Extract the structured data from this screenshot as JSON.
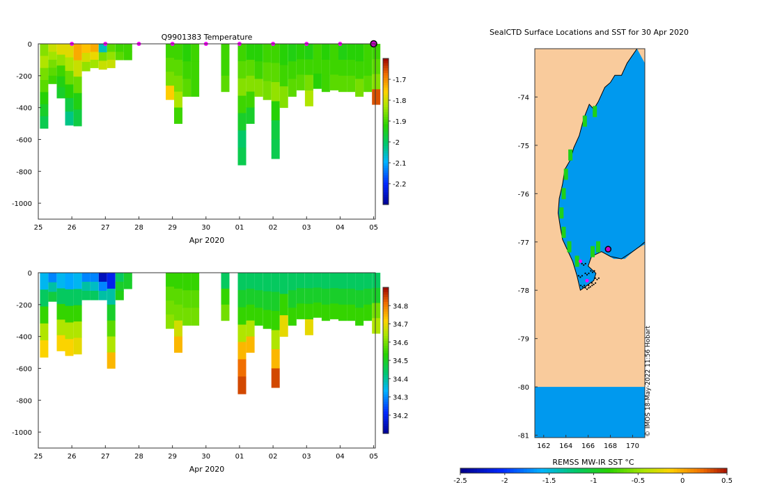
{
  "chart_data": [
    {
      "id": "temperature",
      "type": "heatmap",
      "title": "Q9901383  Temperature",
      "xlabel": "Apr 2020",
      "x_ticks": [
        "25",
        "26",
        "27",
        "28",
        "29",
        "30",
        "01",
        "02",
        "03",
        "04",
        "05"
      ],
      "y_ticks": [
        "0",
        "-200",
        "-400",
        "-600",
        "-800",
        "-1000"
      ],
      "y_tick_values": [
        0,
        -200,
        -400,
        -600,
        -800,
        -1000
      ],
      "ylim": [
        -1100,
        0
      ],
      "xlim_days": [
        0,
        10.05
      ],
      "colorbar": {
        "min": -2.3,
        "max": -1.6,
        "ticks": [
          "-1.7",
          "-1.8",
          "-1.9",
          "-2",
          "-2.1",
          "-2.2"
        ],
        "tick_values": [
          -1.7,
          -1.8,
          -1.9,
          -2.0,
          -2.1,
          -2.2
        ]
      },
      "profile_markers_days": [
        1,
        2,
        3,
        4,
        5,
        6,
        7,
        8,
        9
      ],
      "latest_marker_day": 10,
      "profiles": [
        {
          "x": 0.05,
          "depth": 530,
          "vals": [
            -1.85,
            -1.82,
            -1.86,
            -1.88,
            -1.92,
            -1.95,
            -1.98
          ]
        },
        {
          "x": 0.3,
          "depth": 250,
          "vals": [
            -1.8,
            -1.83,
            -1.86,
            -1.88,
            -1.9
          ]
        },
        {
          "x": 0.55,
          "depth": 340,
          "vals": [
            -1.78,
            -1.84,
            -1.9,
            -1.93,
            -1.95
          ]
        },
        {
          "x": 0.8,
          "depth": 510,
          "vals": [
            -1.78,
            -1.82,
            -1.87,
            -1.92,
            -1.97,
            -2.02
          ]
        },
        {
          "x": 1.05,
          "depth": 515,
          "vals": [
            -1.72,
            -1.8,
            -1.87,
            -1.93,
            -1.97
          ]
        },
        {
          "x": 1.3,
          "depth": 170,
          "vals": [
            -1.74,
            -1.79,
            -1.84
          ]
        },
        {
          "x": 1.55,
          "depth": 150,
          "vals": [
            -1.72,
            -1.77,
            -1.83
          ]
        },
        {
          "x": 1.8,
          "depth": 160,
          "vals": [
            -2.05,
            -1.86,
            -1.8
          ]
        },
        {
          "x": 2.05,
          "depth": 150,
          "vals": [
            -1.88,
            -1.84,
            -1.8
          ]
        },
        {
          "x": 2.3,
          "depth": 100,
          "vals": [
            -1.9,
            -1.88
          ]
        },
        {
          "x": 2.55,
          "depth": 100,
          "vals": [
            -1.9,
            -1.9
          ]
        },
        {
          "x": 3.8,
          "depth": 350,
          "vals": [
            -1.9,
            -1.88,
            -1.86,
            -1.75
          ]
        },
        {
          "x": 4.05,
          "depth": 500,
          "vals": [
            -1.9,
            -1.88,
            -1.86,
            -1.82,
            -1.9
          ]
        },
        {
          "x": 4.3,
          "depth": 330,
          "vals": [
            -1.92,
            -1.9,
            -1.88
          ]
        },
        {
          "x": 4.55,
          "depth": 330,
          "vals": [
            -1.9,
            -1.9,
            -1.9
          ]
        },
        {
          "x": 5.45,
          "depth": 300,
          "vals": [
            -1.9,
            -1.9,
            -1.88
          ]
        },
        {
          "x": 5.95,
          "depth": 760,
          "vals": [
            -1.9,
            -1.88,
            -1.85,
            -1.9,
            -1.95,
            -2.0,
            -1.98
          ]
        },
        {
          "x": 6.2,
          "depth": 500,
          "vals": [
            -1.92,
            -1.88,
            -1.85,
            -1.9,
            -1.95
          ]
        },
        {
          "x": 6.45,
          "depth": 330,
          "vals": [
            -1.92,
            -1.9,
            -1.85
          ]
        },
        {
          "x": 6.7,
          "depth": 350,
          "vals": [
            -1.9,
            -1.88,
            -1.86
          ]
        },
        {
          "x": 6.95,
          "depth": 720,
          "vals": [
            -1.9,
            -1.88,
            -1.84,
            -1.92,
            -1.97,
            -1.98
          ]
        },
        {
          "x": 7.2,
          "depth": 400,
          "vals": [
            -1.92,
            -1.9,
            -1.85
          ]
        },
        {
          "x": 7.45,
          "depth": 330,
          "vals": [
            -1.93,
            -1.9,
            -1.88
          ]
        },
        {
          "x": 7.7,
          "depth": 290,
          "vals": [
            -1.92,
            -1.9,
            -1.88
          ]
        },
        {
          "x": 7.95,
          "depth": 390,
          "vals": [
            -1.93,
            -1.9,
            -1.86,
            -1.82
          ]
        },
        {
          "x": 8.2,
          "depth": 280,
          "vals": [
            -1.9,
            -1.9,
            -1.92
          ]
        },
        {
          "x": 8.45,
          "depth": 300,
          "vals": [
            -1.92,
            -1.9,
            -1.9
          ]
        },
        {
          "x": 8.7,
          "depth": 290,
          "vals": [
            -1.9,
            -1.9,
            -1.88
          ]
        },
        {
          "x": 8.95,
          "depth": 300,
          "vals": [
            -1.93,
            -1.9,
            -1.88
          ]
        },
        {
          "x": 9.2,
          "depth": 300,
          "vals": [
            -1.92,
            -1.9,
            -1.88
          ]
        },
        {
          "x": 9.45,
          "depth": 330,
          "vals": [
            -1.92,
            -1.9,
            -1.86
          ]
        },
        {
          "x": 9.7,
          "depth": 300,
          "vals": [
            -1.9,
            -1.9,
            -1.88
          ]
        },
        {
          "x": 9.95,
          "depth": 380,
          "vals": [
            -1.9,
            -1.88,
            -1.85,
            -1.65
          ]
        }
      ]
    },
    {
      "id": "salinity",
      "type": "heatmap",
      "title": "",
      "xlabel": "Apr 2020",
      "x_ticks": [
        "25",
        "26",
        "27",
        "28",
        "29",
        "30",
        "01",
        "02",
        "03",
        "04",
        "05"
      ],
      "y_ticks": [
        "0",
        "-200",
        "-400",
        "-600",
        "-800",
        "-1000"
      ],
      "y_tick_values": [
        0,
        -200,
        -400,
        -600,
        -800,
        -1000
      ],
      "ylim": [
        -1100,
        0
      ],
      "xlim_days": [
        0,
        10.05
      ],
      "colorbar": {
        "min": 34.1,
        "max": 34.9,
        "ticks": [
          "34.8",
          "34.7",
          "34.6",
          "34.5",
          "34.4",
          "34.3",
          "34.2"
        ],
        "tick_values": [
          34.8,
          34.7,
          34.6,
          34.5,
          34.4,
          34.3,
          34.2
        ]
      },
      "profiles": [
        {
          "x": 0.05,
          "depth": 530,
          "vals": [
            34.35,
            34.45,
            34.55,
            34.65,
            34.72
          ]
        },
        {
          "x": 0.3,
          "depth": 180,
          "vals": [
            34.3,
            34.4,
            34.48
          ]
        },
        {
          "x": 0.55,
          "depth": 490,
          "vals": [
            34.35,
            34.45,
            34.55,
            34.65,
            34.72
          ]
        },
        {
          "x": 0.8,
          "depth": 520,
          "vals": [
            34.33,
            34.45,
            34.55,
            34.65,
            34.72
          ]
        },
        {
          "x": 1.05,
          "depth": 510,
          "vals": [
            34.35,
            34.45,
            34.55,
            34.65,
            34.7
          ]
        },
        {
          "x": 1.3,
          "depth": 170,
          "vals": [
            34.3,
            34.4,
            34.45
          ]
        },
        {
          "x": 1.55,
          "depth": 170,
          "vals": [
            34.3,
            34.38,
            34.45
          ]
        },
        {
          "x": 1.8,
          "depth": 170,
          "vals": [
            34.15,
            34.3,
            34.4
          ]
        },
        {
          "x": 2.05,
          "depth": 600,
          "vals": [
            34.2,
            34.4,
            34.5,
            34.58,
            34.65,
            34.75
          ]
        },
        {
          "x": 2.3,
          "depth": 170,
          "vals": [
            34.45,
            34.5,
            34.52
          ]
        },
        {
          "x": 2.55,
          "depth": 100,
          "vals": [
            34.5,
            34.5
          ]
        },
        {
          "x": 3.8,
          "depth": 350,
          "vals": [
            34.55,
            34.58,
            34.6,
            34.62
          ]
        },
        {
          "x": 4.05,
          "depth": 500,
          "vals": [
            34.55,
            34.58,
            34.6,
            34.68,
            34.75
          ]
        },
        {
          "x": 4.3,
          "depth": 330,
          "vals": [
            34.55,
            34.58,
            34.6
          ]
        },
        {
          "x": 4.55,
          "depth": 330,
          "vals": [
            34.55,
            34.58,
            34.6
          ]
        },
        {
          "x": 5.45,
          "depth": 300,
          "vals": [
            34.45,
            34.55,
            34.6
          ]
        },
        {
          "x": 5.95,
          "depth": 760,
          "vals": [
            34.45,
            34.5,
            34.55,
            34.65,
            34.75,
            34.82,
            34.85
          ]
        },
        {
          "x": 6.2,
          "depth": 500,
          "vals": [
            34.45,
            34.5,
            34.55,
            34.65,
            34.75
          ]
        },
        {
          "x": 6.45,
          "depth": 330,
          "vals": [
            34.45,
            34.5,
            34.55
          ]
        },
        {
          "x": 6.7,
          "depth": 350,
          "vals": [
            34.45,
            34.5,
            34.55
          ]
        },
        {
          "x": 6.95,
          "depth": 720,
          "vals": [
            34.45,
            34.5,
            34.55,
            34.65,
            34.75,
            34.85
          ]
        },
        {
          "x": 7.2,
          "depth": 400,
          "vals": [
            34.45,
            34.55,
            34.7
          ]
        },
        {
          "x": 7.45,
          "depth": 330,
          "vals": [
            34.45,
            34.5,
            34.55
          ]
        },
        {
          "x": 7.7,
          "depth": 290,
          "vals": [
            34.45,
            34.5,
            34.55
          ]
        },
        {
          "x": 7.95,
          "depth": 390,
          "vals": [
            34.45,
            34.5,
            34.55,
            34.7
          ]
        },
        {
          "x": 8.2,
          "depth": 280,
          "vals": [
            34.45,
            34.5,
            34.55
          ]
        },
        {
          "x": 8.45,
          "depth": 300,
          "vals": [
            34.45,
            34.5,
            34.55
          ]
        },
        {
          "x": 8.7,
          "depth": 290,
          "vals": [
            34.45,
            34.5,
            34.55
          ]
        },
        {
          "x": 8.95,
          "depth": 300,
          "vals": [
            34.45,
            34.5,
            34.55
          ]
        },
        {
          "x": 9.2,
          "depth": 300,
          "vals": [
            34.45,
            34.5,
            34.55
          ]
        },
        {
          "x": 9.45,
          "depth": 330,
          "vals": [
            34.45,
            34.5,
            34.55
          ]
        },
        {
          "x": 9.7,
          "depth": 300,
          "vals": [
            34.45,
            34.5,
            34.55
          ]
        },
        {
          "x": 9.95,
          "depth": 380,
          "vals": [
            34.45,
            34.5,
            34.6,
            34.65
          ]
        }
      ]
    },
    {
      "id": "map",
      "type": "heatmap",
      "title": "SealCTD Surface Locations and SST for 30 Apr 2020",
      "xlabel": "",
      "ylabel": "",
      "x_ticks": [
        "162",
        "164",
        "166",
        "168",
        "170"
      ],
      "x_tick_values": [
        162,
        164,
        166,
        168,
        170
      ],
      "y_ticks": [
        "-74",
        "-75",
        "-76",
        "-77",
        "-78",
        "-79",
        "-80",
        "-81"
      ],
      "y_tick_values": [
        -74,
        -75,
        -76,
        -77,
        -78,
        -79,
        -80,
        -81
      ],
      "xlim": [
        161.2,
        171.1
      ],
      "ylim": [
        -81.05,
        -73.0
      ],
      "land_color": "#f9cb9c",
      "ice_shelf_edge_lat": -80.0,
      "sea_value_sst": -1.4,
      "coast_lonlat": [
        [
          170.4,
          -73.0
        ],
        [
          169.5,
          -73.3
        ],
        [
          169.0,
          -73.55
        ],
        [
          168.4,
          -73.55
        ],
        [
          168.0,
          -73.7
        ],
        [
          167.5,
          -73.8
        ],
        [
          166.9,
          -74.1
        ],
        [
          166.5,
          -74.25
        ],
        [
          166.1,
          -74.15
        ],
        [
          165.6,
          -74.45
        ],
        [
          165.2,
          -74.8
        ],
        [
          164.7,
          -75.05
        ],
        [
          164.4,
          -75.3
        ],
        [
          163.9,
          -75.5
        ],
        [
          163.7,
          -75.8
        ],
        [
          163.4,
          -76.1
        ],
        [
          163.3,
          -76.4
        ],
        [
          163.5,
          -76.7
        ],
        [
          163.7,
          -76.95
        ],
        [
          164.1,
          -77.15
        ],
        [
          164.6,
          -77.4
        ],
        [
          165.0,
          -77.7
        ],
        [
          165.3,
          -78.0
        ],
        [
          165.9,
          -77.9
        ],
        [
          166.5,
          -77.8
        ],
        [
          166.7,
          -77.65
        ],
        [
          166.0,
          -77.5
        ],
        [
          166.3,
          -77.3
        ],
        [
          167.2,
          -77.2
        ],
        [
          168.0,
          -77.3
        ],
        [
          169.0,
          -77.35
        ],
        [
          170.0,
          -77.2
        ],
        [
          170.6,
          -77.1
        ],
        [
          171.1,
          -77.0
        ]
      ],
      "seal_track_lonlat": [
        [
          165.6,
          -77.45
        ],
        [
          165.3,
          -77.7
        ],
        [
          165.5,
          -77.9
        ],
        [
          165.9,
          -77.95
        ],
        [
          166.2,
          -77.9
        ],
        [
          166.5,
          -77.85
        ],
        [
          166.8,
          -77.75
        ],
        [
          166.4,
          -77.6
        ],
        [
          165.9,
          -77.65
        ]
      ],
      "latest_position_lonlat": [
        167.8,
        -77.15
      ],
      "magenta_marker_lonlat": [
        [
          165.3,
          -77.4
        ],
        [
          165.9,
          -77.8
        ]
      ],
      "colorbar": {
        "label": "REMSS MW-IR SST °C",
        "min": -2.5,
        "max": 0.5,
        "ticks": [
          "-2.5",
          "-2",
          "-1.5",
          "-1",
          "-0.5",
          "0",
          "0.5"
        ],
        "tick_values": [
          -2.5,
          -2.0,
          -1.5,
          -1.0,
          -0.5,
          0.0,
          0.5
        ]
      },
      "credit": "© IMOS 18-May-2022 11:56 Hobart"
    }
  ]
}
